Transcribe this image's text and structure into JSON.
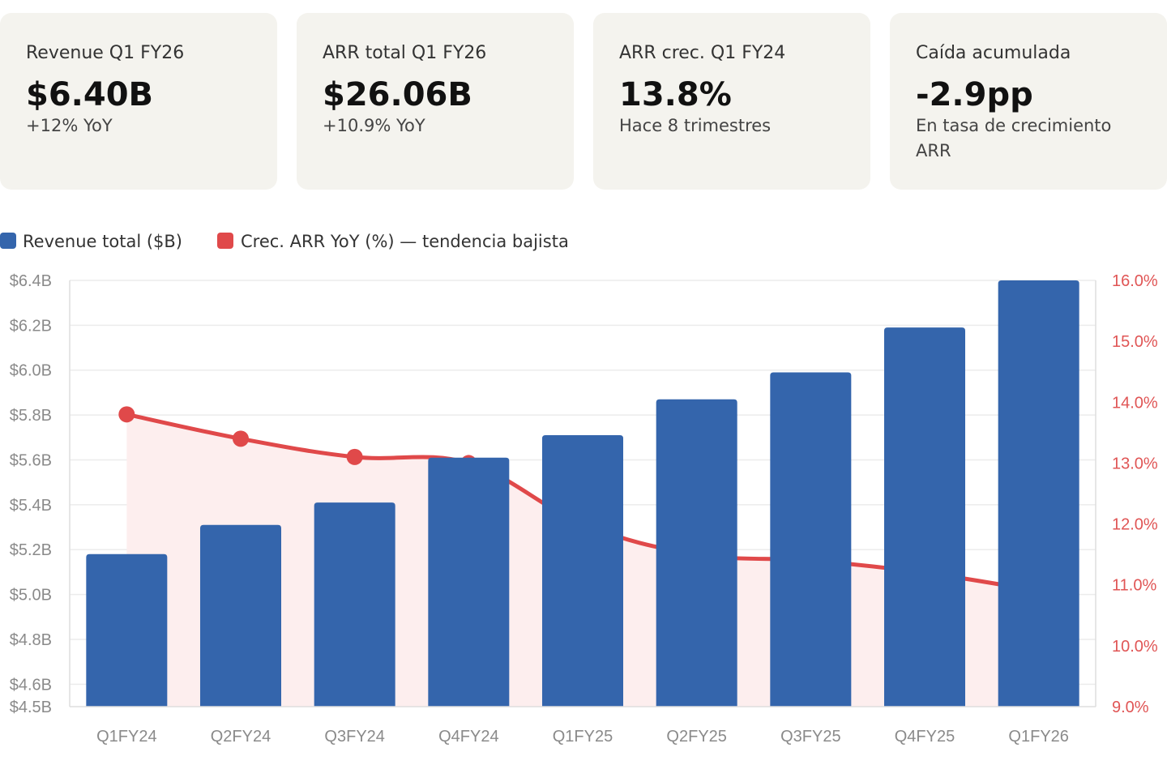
{
  "kpis": [
    {
      "label": "Revenue Q1 FY26",
      "value": "$6.40B",
      "sub": "+12% YoY"
    },
    {
      "label": "ARR total Q1 FY26",
      "value": "$26.06B",
      "sub": "+10.9% YoY"
    },
    {
      "label": "ARR crec. Q1 FY24",
      "value": "13.8%",
      "sub": "Hace 8 trimestres"
    },
    {
      "label": "Caída acumulada",
      "value": "-2.9pp",
      "sub": "En tasa de crecimiento ARR"
    }
  ],
  "legend": {
    "revenue": "Revenue total ($B)",
    "arr": "Crec. ARR YoY (%) — tendencia bajista"
  },
  "colors": {
    "revenue": "#3465ac",
    "arr": "#e0494a",
    "arr_fill": "#fdeeee",
    "card_bg": "#f4f3ee"
  },
  "chart_data": {
    "type": "bar+line",
    "categories": [
      "Q1FY24",
      "Q2FY24",
      "Q3FY24",
      "Q4FY24",
      "Q1FY25",
      "Q2FY25",
      "Q3FY25",
      "Q4FY25",
      "Q1FY26"
    ],
    "series": [
      {
        "name": "Revenue total ($B)",
        "axis": "left",
        "type": "bar",
        "values": [
          5.18,
          5.31,
          5.41,
          5.61,
          5.71,
          5.87,
          5.99,
          6.19,
          6.4
        ]
      },
      {
        "name": "Crec. ARR YoY (%) — tendencia bajista",
        "axis": "right",
        "type": "area-line",
        "values": [
          13.8,
          13.4,
          13.1,
          13.0,
          12.0,
          11.5,
          11.4,
          11.2,
          10.9
        ]
      }
    ],
    "y_left": {
      "min": 4.5,
      "max": 6.4,
      "ticks": [
        4.5,
        4.6,
        4.8,
        5.0,
        5.2,
        5.4,
        5.6,
        5.8,
        6.0,
        6.2,
        6.4
      ],
      "tick_labels": [
        "$4.5B",
        "$4.6B",
        "$4.8B",
        "$5.0B",
        "$5.2B",
        "$5.4B",
        "$5.6B",
        "$5.8B",
        "$6.0B",
        "$6.2B",
        "$6.4B"
      ]
    },
    "y_right": {
      "min": 9.0,
      "max": 16.0,
      "ticks": [
        9,
        10,
        11,
        12,
        13,
        14,
        15,
        16
      ],
      "tick_labels": [
        "9.0%",
        "10.0%",
        "11.0%",
        "12.0%",
        "13.0%",
        "14.0%",
        "15.0%",
        "16.0%"
      ]
    },
    "marker_points": 4
  }
}
